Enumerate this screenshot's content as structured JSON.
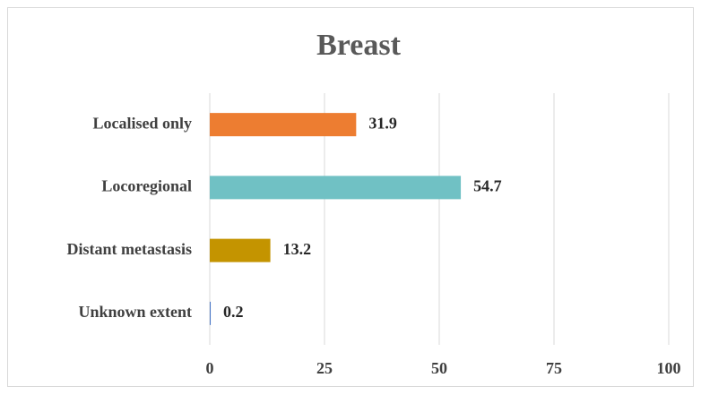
{
  "chart_data": {
    "type": "bar",
    "orientation": "horizontal",
    "title": "Breast",
    "categories": [
      "Localised only",
      "Locoregional",
      "Distant metastasis",
      "Unknown extent"
    ],
    "values": [
      31.9,
      54.7,
      13.2,
      0.2
    ],
    "colors": [
      "#ED7D31",
      "#70C1C4",
      "#C49400",
      "#4472C4"
    ],
    "xlim": [
      0,
      100
    ],
    "xticks": [
      0,
      25,
      50,
      75,
      100
    ],
    "grid": true
  }
}
